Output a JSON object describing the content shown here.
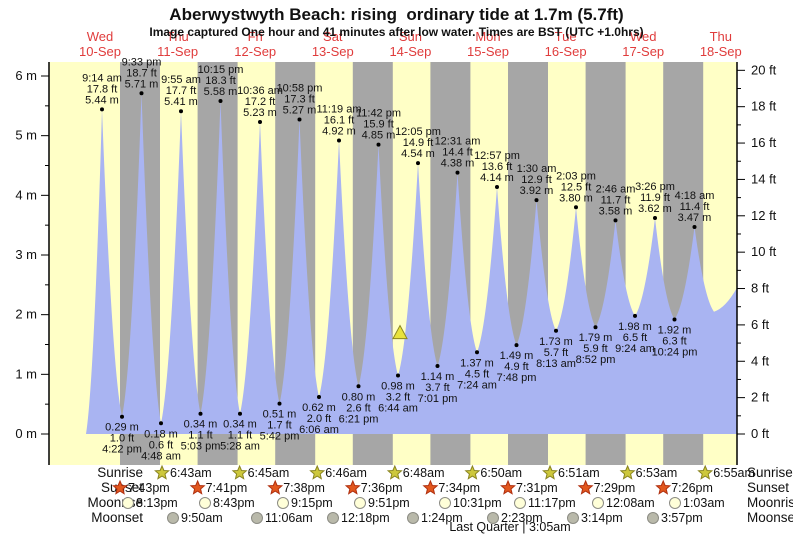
{
  "title": "Aberwystwyth Beach: rising  ordinary tide at 1.7m (5.7ft)",
  "subtitle": "Image captured One hour and 41 minutes after low water. Times are BST (UTC +1.0hrs)",
  "chart_data": {
    "type": "area",
    "title": "Aberwystwyth Beach: rising ordinary tide at 1.7m (5.7ft)",
    "ylabel_left": "meters",
    "ylabel_right": "feet",
    "ylim_m": [
      0,
      6
    ],
    "ylim_ft": [
      0,
      20
    ],
    "ytick_labels_m": [
      "0 m",
      "1 m",
      "2 m",
      "3 m",
      "4 m",
      "5 m",
      "6 m"
    ],
    "ytick_labels_ft": [
      "0 ft",
      "2 ft",
      "4 ft",
      "6 ft",
      "8 ft",
      "10 ft",
      "12 ft",
      "14 ft",
      "16 ft",
      "18 ft",
      "20 ft"
    ],
    "grid": false,
    "legend": false,
    "days": [
      {
        "name": "Wed",
        "date": "10-Sep"
      },
      {
        "name": "Thu",
        "date": "11-Sep"
      },
      {
        "name": "Fri",
        "date": "12-Sep"
      },
      {
        "name": "Sat",
        "date": "13-Sep"
      },
      {
        "name": "Sun",
        "date": "14-Sep"
      },
      {
        "name": "Mon",
        "date": "15-Sep"
      },
      {
        "name": "Tue",
        "date": "16-Sep"
      },
      {
        "name": "Wed",
        "date": "17-Sep"
      },
      {
        "name": "Thu",
        "date": "18-Sep"
      }
    ],
    "high_tides": [
      {
        "time": "9:14 am",
        "height_ft": "17.8 ft",
        "height_m": "5.44 m",
        "m": 5.44
      },
      {
        "time": "9:33 pm",
        "height_ft": "18.7 ft",
        "height_m": "5.71 m",
        "m": 5.71
      },
      {
        "time": "9:55 am",
        "height_ft": "17.7 ft",
        "height_m": "5.41 m",
        "m": 5.41
      },
      {
        "time": "10:15 pm",
        "height_ft": "18.3 ft",
        "height_m": "5.58 m",
        "m": 5.58
      },
      {
        "time": "10:36 am",
        "height_ft": "17.2 ft",
        "height_m": "5.23 m",
        "m": 5.23
      },
      {
        "time": "10:58 pm",
        "height_ft": "17.3 ft",
        "height_m": "5.27 m",
        "m": 5.27
      },
      {
        "time": "11:19 am",
        "height_ft": "16.1 ft",
        "height_m": "4.92 m",
        "m": 4.92
      },
      {
        "time": "11:42 pm",
        "height_ft": "15.9 ft",
        "height_m": "4.85 m",
        "m": 4.85
      },
      {
        "time": "12:05 pm",
        "height_ft": "14.9 ft",
        "height_m": "4.54 m",
        "m": 4.54
      },
      {
        "time": "12:31 am",
        "height_ft": "14.4 ft",
        "height_m": "4.38 m",
        "m": 4.38
      },
      {
        "time": "12:57 pm",
        "height_ft": "13.6 ft",
        "height_m": "4.14 m",
        "m": 4.14
      },
      {
        "time": "1:30 am",
        "height_ft": "12.9 ft",
        "height_m": "3.92 m",
        "m": 3.92
      },
      {
        "time": "2:03 pm",
        "height_ft": "12.5 ft",
        "height_m": "3.80 m",
        "m": 3.8
      },
      {
        "time": "2:46 am",
        "height_ft": "11.7 ft",
        "height_m": "3.58 m",
        "m": 3.58
      },
      {
        "time": "3:26 pm",
        "height_ft": "11.9 ft",
        "height_m": "3.62 m",
        "m": 3.62
      },
      {
        "time": "4:18 am",
        "height_ft": "11.4 ft",
        "height_m": "3.47 m",
        "m": 3.47
      }
    ],
    "low_tides": [
      {
        "height_m": "0.29 m",
        "height_ft": "1.0 ft",
        "time": "4:22 pm",
        "m": 0.29
      },
      {
        "height_m": "0.18 m",
        "height_ft": "0.6 ft",
        "time": "4:48 am",
        "m": 0.18
      },
      {
        "height_m": "0.34 m",
        "height_ft": "1.1 ft",
        "time": "5:03 pm",
        "m": 0.34
      },
      {
        "height_m": "0.34 m",
        "height_ft": "1.1 ft",
        "time": "5:28 am",
        "m": 0.34
      },
      {
        "height_m": "0.51 m",
        "height_ft": "1.7 ft",
        "time": "5:42 pm",
        "m": 0.51
      },
      {
        "height_m": "0.62 m",
        "height_ft": "2.0 ft",
        "time": "6:06 am",
        "m": 0.62
      },
      {
        "height_m": "0.80 m",
        "height_ft": "2.6 ft",
        "time": "6:21 pm",
        "m": 0.8
      },
      {
        "height_m": "0.98 m",
        "height_ft": "3.2 ft",
        "time": "6:44 am",
        "m": 0.98
      },
      {
        "height_m": "1.14 m",
        "height_ft": "3.7 ft",
        "time": "7:01 pm",
        "m": 1.14
      },
      {
        "height_m": "1.37 m",
        "height_ft": "4.5 ft",
        "time": "7:24 am",
        "m": 1.37
      },
      {
        "height_m": "1.49 m",
        "height_ft": "4.9 ft",
        "time": "7:48 pm",
        "m": 1.49
      },
      {
        "height_m": "1.73 m",
        "height_ft": "5.7 ft",
        "time": "8:13 am",
        "m": 1.73
      },
      {
        "height_m": "1.79 m",
        "height_ft": "5.9 ft",
        "time": "8:52 pm",
        "m": 1.79
      },
      {
        "height_m": "1.98 m",
        "height_ft": "6.5 ft",
        "time": "9:24 am",
        "m": 1.98
      },
      {
        "height_m": "1.92 m",
        "height_ft": "6.3 ft",
        "time": "10:24 pm",
        "m": 1.92
      }
    ],
    "marker": {
      "symbol": "triangle",
      "height_m": 1.7
    }
  },
  "astro": {
    "rows": [
      {
        "label": "Sunrise",
        "icon": "sunrise-star-icon",
        "times": [
          "6:43am",
          "6:45am",
          "6:46am",
          "6:48am",
          "6:50am",
          "6:51am",
          "6:53am",
          "6:55am"
        ]
      },
      {
        "label": "Sunset",
        "icon": "sunset-star-icon",
        "times": [
          "7:43pm",
          "7:41pm",
          "7:38pm",
          "7:36pm",
          "7:34pm",
          "7:31pm",
          "7:29pm",
          "7:26pm"
        ]
      },
      {
        "label": "Moonrise",
        "icon": "moonrise-circle-icon",
        "times": [
          "8:13pm",
          "8:43pm",
          "9:15pm",
          "9:51pm",
          "10:31pm",
          "11:17pm",
          "12:08am",
          "1:03am"
        ]
      },
      {
        "label": "Moonset",
        "icon": "moonset-circle-icon",
        "times": [
          "9:50am",
          "11:06am",
          "12:18pm",
          "1:24pm",
          "2:23pm",
          "3:14pm",
          "3:57pm"
        ]
      }
    ],
    "moon_phase": "Last Quarter | 3:05am"
  },
  "colors": {
    "day_band": "#ffffc6",
    "night_band": "#a6a6a6",
    "tide_fill": "#a9b4f2",
    "day_label": "#e03c3c",
    "text": "#111111",
    "sunrise_star": "#cdc83c",
    "sunset_star": "#e2571e",
    "moonrise_circle": "#ffffd8",
    "moonset_circle": "#b9b9aa",
    "marker_triangle": "#e8e23c"
  }
}
